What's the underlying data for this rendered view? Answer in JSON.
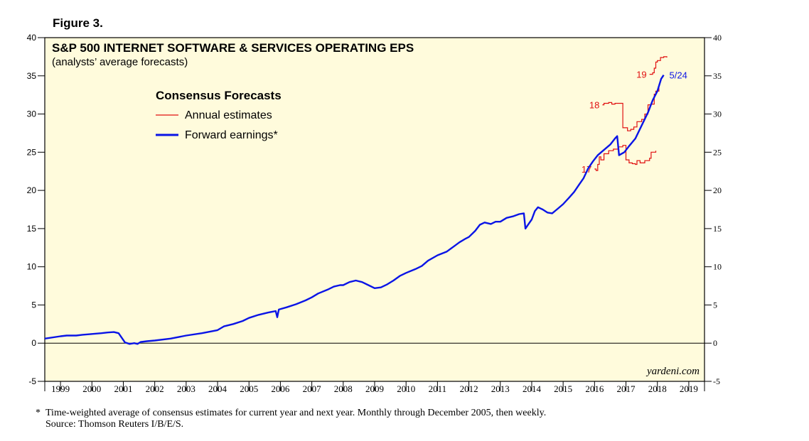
{
  "figure_label": "Figure 3.",
  "footnote": {
    "star": "*",
    "text": "Time-weighted average of consensus estimates for current year and next year. Monthly through December 2005, then weekly.",
    "source": "Source: Thomson Reuters I/B/E/S."
  },
  "colors": {
    "background": "#fffbdc",
    "forward": "#0a14e6",
    "annual": "#e01010"
  },
  "chart_data": {
    "type": "line",
    "title": "S&P 500 INTERNET SOFTWARE & SERVICES OPERATING EPS",
    "subtitle": "(analysts’ average forecasts)",
    "legend_title": "Consensus Forecasts",
    "watermark": "yardeni.com",
    "ylim": [
      -5,
      40
    ],
    "yticks": [
      "-5",
      "0",
      "5",
      "10",
      "15",
      "20",
      "25",
      "30",
      "35",
      "40"
    ],
    "xlim": [
      1998.5,
      2019.5
    ],
    "xtick_labels": [
      "1999",
      "2000",
      "2001",
      "2002",
      "2003",
      "2004",
      "2005",
      "2006",
      "2007",
      "2008",
      "2009",
      "2010",
      "2011",
      "2012",
      "2013",
      "2014",
      "2015",
      "2016",
      "2017",
      "2018",
      "2019"
    ],
    "grid": false,
    "legend_placement": "top-left",
    "series": [
      {
        "name": "Annual estimates",
        "style": "annual",
        "segments": [
          {
            "label": "17",
            "points": [
              [
                2016.0,
                22.8
              ],
              [
                2016.05,
                22.6
              ],
              [
                2016.1,
                23.4
              ],
              [
                2016.15,
                24.4
              ],
              [
                2016.2,
                24.0
              ],
              [
                2016.3,
                24.8
              ],
              [
                2016.45,
                25.2
              ],
              [
                2016.6,
                25.4
              ],
              [
                2016.75,
                25.7
              ],
              [
                2016.9,
                25.9
              ],
              [
                2017.0,
                24.0
              ],
              [
                2017.1,
                23.6
              ],
              [
                2017.2,
                23.5
              ],
              [
                2017.3,
                23.4
              ],
              [
                2017.35,
                23.9
              ],
              [
                2017.45,
                23.6
              ],
              [
                2017.6,
                23.9
              ],
              [
                2017.75,
                24.2
              ],
              [
                2017.8,
                25.0
              ],
              [
                2017.95,
                25.2
              ]
            ]
          },
          {
            "label": "18",
            "points": [
              [
                2016.25,
                31.2
              ],
              [
                2016.3,
                31.4
              ],
              [
                2016.45,
                31.5
              ],
              [
                2016.55,
                31.3
              ],
              [
                2016.65,
                31.4
              ],
              [
                2016.9,
                28.2
              ],
              [
                2017.05,
                27.8
              ],
              [
                2017.15,
                28.0
              ],
              [
                2017.25,
                28.3
              ],
              [
                2017.35,
                29.0
              ],
              [
                2017.5,
                29.3
              ],
              [
                2017.6,
                30.0
              ],
              [
                2017.7,
                31.2
              ],
              [
                2017.8,
                31.3
              ],
              [
                2017.9,
                32.6
              ],
              [
                2017.95,
                33.0
              ],
              [
                2018.05,
                33.5
              ]
            ]
          },
          {
            "label": "19",
            "points": [
              [
                2017.75,
                35.2
              ],
              [
                2017.85,
                35.4
              ],
              [
                2017.9,
                36.0
              ],
              [
                2017.95,
                36.8
              ],
              [
                2018.0,
                37.0
              ],
              [
                2018.1,
                37.4
              ],
              [
                2018.2,
                37.5
              ],
              [
                2018.3,
                37.4
              ]
            ]
          }
        ]
      },
      {
        "name": "Forward earnings*",
        "style": "forward",
        "end_label": "5/24",
        "points": [
          [
            1998.5,
            0.6
          ],
          [
            1999.0,
            0.9
          ],
          [
            1999.2,
            1.0
          ],
          [
            1999.5,
            1.0
          ],
          [
            1999.7,
            1.1
          ],
          [
            2000.0,
            1.2
          ],
          [
            2000.3,
            1.3
          ],
          [
            2000.5,
            1.4
          ],
          [
            2000.7,
            1.45
          ],
          [
            2000.85,
            1.3
          ],
          [
            2000.95,
            0.7
          ],
          [
            2001.05,
            0.1
          ],
          [
            2001.2,
            -0.1
          ],
          [
            2001.35,
            0.0
          ],
          [
            2001.45,
            -0.1
          ],
          [
            2001.55,
            0.15
          ],
          [
            2001.75,
            0.25
          ],
          [
            2002.0,
            0.35
          ],
          [
            2002.5,
            0.6
          ],
          [
            2003.0,
            1.0
          ],
          [
            2003.5,
            1.3
          ],
          [
            2004.0,
            1.7
          ],
          [
            2004.2,
            2.2
          ],
          [
            2004.5,
            2.5
          ],
          [
            2004.8,
            2.9
          ],
          [
            2005.0,
            3.3
          ],
          [
            2005.3,
            3.7
          ],
          [
            2005.6,
            4.0
          ],
          [
            2005.85,
            4.2
          ],
          [
            2005.9,
            3.4
          ],
          [
            2005.95,
            4.4
          ],
          [
            2006.2,
            4.7
          ],
          [
            2006.5,
            5.1
          ],
          [
            2006.8,
            5.6
          ],
          [
            2007.0,
            6.0
          ],
          [
            2007.2,
            6.5
          ],
          [
            2007.5,
            7.0
          ],
          [
            2007.7,
            7.4
          ],
          [
            2007.9,
            7.6
          ],
          [
            2008.0,
            7.6
          ],
          [
            2008.2,
            8.0
          ],
          [
            2008.4,
            8.2
          ],
          [
            2008.6,
            8.0
          ],
          [
            2008.8,
            7.6
          ],
          [
            2009.0,
            7.2
          ],
          [
            2009.2,
            7.3
          ],
          [
            2009.4,
            7.7
          ],
          [
            2009.6,
            8.2
          ],
          [
            2009.8,
            8.8
          ],
          [
            2010.0,
            9.2
          ],
          [
            2010.3,
            9.7
          ],
          [
            2010.5,
            10.1
          ],
          [
            2010.7,
            10.8
          ],
          [
            2011.0,
            11.5
          ],
          [
            2011.3,
            12.0
          ],
          [
            2011.5,
            12.6
          ],
          [
            2011.7,
            13.2
          ],
          [
            2011.9,
            13.7
          ],
          [
            2012.0,
            13.9
          ],
          [
            2012.2,
            14.7
          ],
          [
            2012.35,
            15.5
          ],
          [
            2012.5,
            15.8
          ],
          [
            2012.7,
            15.6
          ],
          [
            2012.85,
            15.9
          ],
          [
            2013.0,
            15.9
          ],
          [
            2013.2,
            16.4
          ],
          [
            2013.4,
            16.6
          ],
          [
            2013.6,
            16.9
          ],
          [
            2013.75,
            17.0
          ],
          [
            2013.8,
            15.0
          ],
          [
            2013.9,
            15.6
          ],
          [
            2014.0,
            16.2
          ],
          [
            2014.1,
            17.3
          ],
          [
            2014.2,
            17.8
          ],
          [
            2014.35,
            17.5
          ],
          [
            2014.5,
            17.1
          ],
          [
            2014.65,
            17.0
          ],
          [
            2014.8,
            17.5
          ],
          [
            2015.0,
            18.2
          ],
          [
            2015.2,
            19.1
          ],
          [
            2015.35,
            19.8
          ],
          [
            2015.5,
            20.7
          ],
          [
            2015.65,
            21.6
          ],
          [
            2015.8,
            22.9
          ],
          [
            2015.95,
            23.8
          ],
          [
            2016.1,
            24.6
          ],
          [
            2016.3,
            25.3
          ],
          [
            2016.5,
            26.0
          ],
          [
            2016.65,
            26.8
          ],
          [
            2016.72,
            27.1
          ],
          [
            2016.78,
            24.6
          ],
          [
            2016.95,
            25.0
          ],
          [
            2017.1,
            25.8
          ],
          [
            2017.3,
            26.8
          ],
          [
            2017.5,
            28.5
          ],
          [
            2017.7,
            30.2
          ],
          [
            2017.85,
            31.8
          ],
          [
            2018.0,
            33.0
          ],
          [
            2018.12,
            34.6
          ],
          [
            2018.2,
            35.1
          ]
        ]
      }
    ]
  }
}
